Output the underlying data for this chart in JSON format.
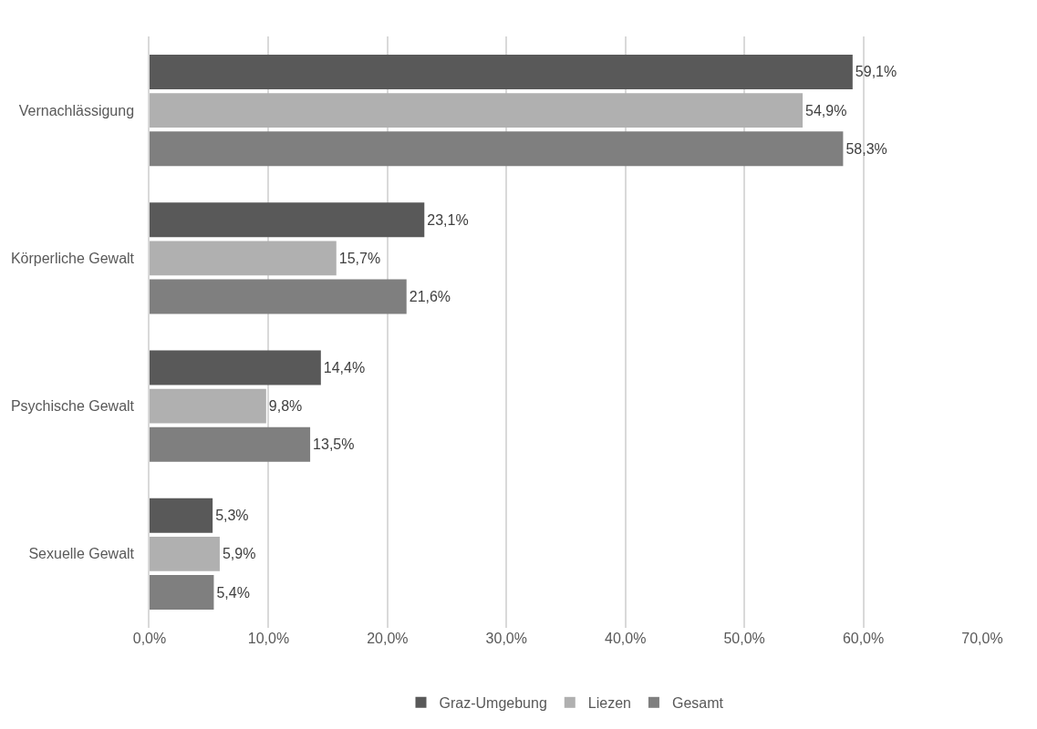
{
  "chart_data": {
    "type": "bar",
    "orientation": "horizontal",
    "categories": [
      "Vernachlässigung",
      "Körperliche Gewalt",
      "Psychische Gewalt",
      "Sexuelle Gewalt"
    ],
    "series": [
      {
        "name": "Graz-Umgebung",
        "color": "#595959",
        "values": [
          59.1,
          23.1,
          14.4,
          5.3
        ],
        "value_labels": [
          "59,1%",
          "23,1%",
          "14,4%",
          "5,3%"
        ]
      },
      {
        "name": "Liezen",
        "color": "#b0b0b0",
        "values": [
          54.9,
          15.7,
          9.8,
          5.9
        ],
        "value_labels": [
          "54,9%",
          "15,7%",
          "9,8%",
          "5,9%"
        ]
      },
      {
        "name": "Gesamt",
        "color": "#7f7f7f",
        "values": [
          58.3,
          21.6,
          13.5,
          5.4
        ],
        "value_labels": [
          "58,3%",
          "21,6%",
          "13,5%",
          "5,4%"
        ]
      }
    ],
    "xlim": [
      0,
      70
    ],
    "xticks": [
      {
        "value": 0,
        "label": "0,0%"
      },
      {
        "value": 10,
        "label": "10,0%"
      },
      {
        "value": 20,
        "label": "20,0%"
      },
      {
        "value": 30,
        "label": "30,0%"
      },
      {
        "value": 40,
        "label": "40,0%"
      },
      {
        "value": 50,
        "label": "50,0%"
      },
      {
        "value": 60,
        "label": "60,0%"
      },
      {
        "value": 70,
        "label": "70,0%"
      }
    ],
    "grid": "x",
    "legend": "bottom"
  }
}
